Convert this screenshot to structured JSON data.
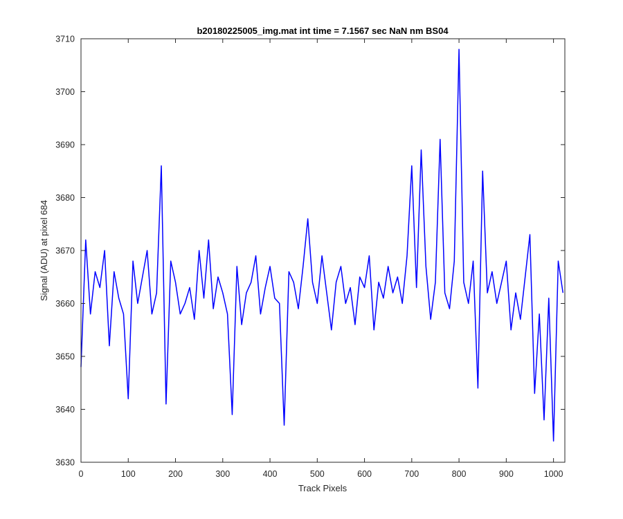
{
  "chart_data": {
    "type": "line",
    "title": "b20180225005_img.mat int time = 7.1567 sec  NaN nm BS04",
    "xlabel": "Track Pixels",
    "ylabel": "Signal (ADU) at pixel 684",
    "xlim": [
      0,
      1024
    ],
    "ylim": [
      3630,
      3710
    ],
    "xticks": [
      0,
      100,
      200,
      300,
      400,
      500,
      600,
      700,
      800,
      900,
      1000
    ],
    "yticks": [
      3630,
      3640,
      3650,
      3660,
      3670,
      3680,
      3690,
      3700,
      3710
    ],
    "grid": false,
    "legend": "none",
    "series": [
      {
        "color": "#0000ff",
        "x": [
          0,
          10,
          20,
          30,
          40,
          50,
          60,
          70,
          80,
          90,
          100,
          110,
          120,
          130,
          140,
          150,
          160,
          170,
          180,
          190,
          200,
          210,
          220,
          230,
          240,
          250,
          260,
          270,
          280,
          290,
          300,
          310,
          320,
          330,
          340,
          350,
          360,
          370,
          380,
          390,
          400,
          410,
          420,
          430,
          440,
          450,
          460,
          470,
          480,
          490,
          500,
          510,
          520,
          530,
          540,
          550,
          560,
          570,
          580,
          590,
          600,
          610,
          620,
          630,
          640,
          650,
          660,
          670,
          680,
          690,
          700,
          710,
          720,
          730,
          740,
          750,
          760,
          770,
          780,
          790,
          800,
          810,
          820,
          830,
          840,
          850,
          860,
          870,
          880,
          890,
          900,
          910,
          920,
          930,
          940,
          950,
          960,
          970,
          980,
          990,
          1000,
          1010,
          1020
        ],
        "y": [
          3648,
          3672,
          3658,
          3666,
          3663,
          3670,
          3652,
          3666,
          3661,
          3658,
          3642,
          3668,
          3660,
          3665,
          3670,
          3658,
          3662,
          3686,
          3641,
          3668,
          3664,
          3658,
          3660,
          3663,
          3657,
          3670,
          3661,
          3672,
          3659,
          3665,
          3662,
          3658,
          3639,
          3667,
          3656,
          3662,
          3664,
          3669,
          3658,
          3663,
          3667,
          3661,
          3660,
          3637,
          3666,
          3664,
          3659,
          3667,
          3676,
          3664,
          3660,
          3669,
          3662,
          3655,
          3664,
          3667,
          3660,
          3663,
          3656,
          3665,
          3663,
          3669,
          3655,
          3664,
          3661,
          3667,
          3662,
          3665,
          3660,
          3669,
          3686,
          3663,
          3689,
          3667,
          3657,
          3664,
          3691,
          3662,
          3659,
          3668,
          3708,
          3664,
          3660,
          3668,
          3644,
          3685,
          3662,
          3666,
          3660,
          3664,
          3668,
          3655,
          3662,
          3657,
          3665,
          3673,
          3643,
          3658,
          3638,
          3661,
          3634,
          3668,
          3662
        ]
      }
    ]
  }
}
